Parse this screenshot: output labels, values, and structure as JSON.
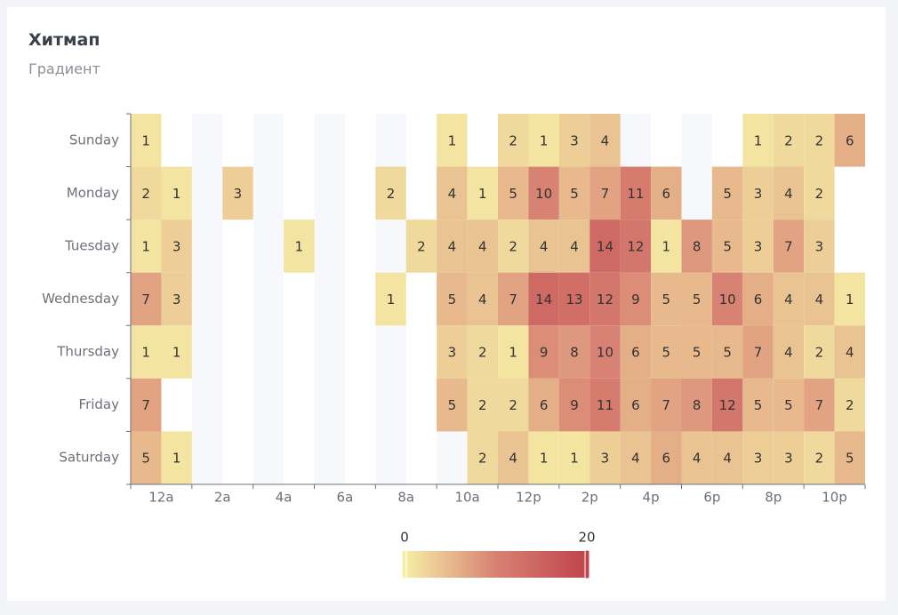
{
  "chart_data": {
    "type": "heatmap",
    "title": "Хитмап",
    "subtitle": "Градиент",
    "x": [
      "12a",
      null,
      "2a",
      null,
      "4a",
      null,
      "6a",
      null,
      "8a",
      null,
      "10a",
      null,
      "12p",
      null,
      "2p",
      null,
      "4p",
      null,
      "6p",
      null,
      "8p",
      null,
      "10p",
      null
    ],
    "y": [
      "Sunday",
      "Monday",
      "Tuesday",
      "Wednesday",
      "Thursday",
      "Friday",
      "Saturday"
    ],
    "values": [
      [
        1,
        null,
        null,
        null,
        null,
        null,
        null,
        null,
        null,
        null,
        1,
        null,
        2,
        1,
        3,
        4,
        null,
        null,
        null,
        null,
        1,
        2,
        2,
        6
      ],
      [
        2,
        1,
        null,
        3,
        null,
        null,
        null,
        null,
        2,
        null,
        4,
        1,
        5,
        10,
        5,
        7,
        11,
        6,
        null,
        5,
        3,
        4,
        2,
        null
      ],
      [
        1,
        3,
        null,
        null,
        null,
        1,
        null,
        null,
        null,
        2,
        4,
        4,
        2,
        4,
        4,
        14,
        12,
        1,
        8,
        5,
        3,
        7,
        3,
        null
      ],
      [
        7,
        3,
        null,
        null,
        null,
        null,
        null,
        null,
        1,
        null,
        5,
        4,
        7,
        14,
        13,
        12,
        9,
        5,
        5,
        10,
        6,
        4,
        4,
        1
      ],
      [
        1,
        1,
        null,
        null,
        null,
        null,
        null,
        null,
        null,
        null,
        3,
        2,
        1,
        9,
        8,
        10,
        6,
        5,
        5,
        5,
        7,
        4,
        2,
        4
      ],
      [
        7,
        null,
        null,
        null,
        null,
        null,
        null,
        null,
        null,
        null,
        5,
        2,
        2,
        6,
        9,
        11,
        6,
        7,
        8,
        12,
        5,
        5,
        7,
        2
      ],
      [
        5,
        1,
        null,
        null,
        null,
        null,
        null,
        null,
        null,
        null,
        null,
        2,
        4,
        1,
        1,
        3,
        4,
        6,
        4,
        4,
        3,
        3,
        2,
        5
      ]
    ],
    "visual_map": {
      "min": 0,
      "max": 20,
      "colors": [
        "#f6efa6",
        "#d88273",
        "#bf444c"
      ]
    }
  }
}
